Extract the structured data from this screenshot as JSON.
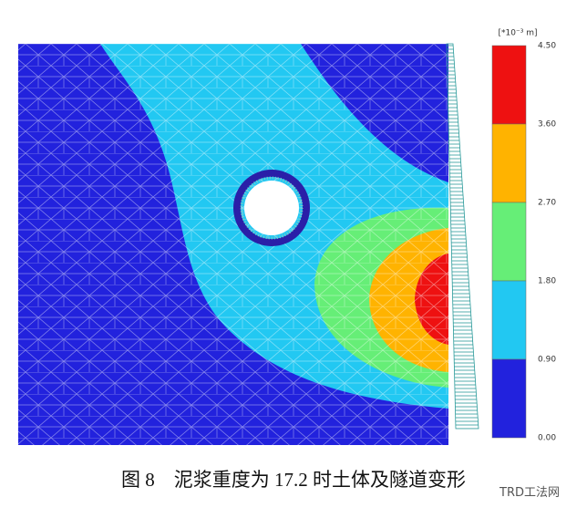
{
  "figure": {
    "unit": "[*10⁻³ m]",
    "scale": {
      "labels": [
        "4.50",
        "3.60",
        "2.70",
        "1.80",
        "0.90",
        "0.00"
      ],
      "colors": [
        "#ee1111",
        "#ffb300",
        "#66ee77",
        "#22c8f2",
        "#2222dd"
      ]
    },
    "caption": "图 8　泥浆重度为 17.2 时土体及隧道变形",
    "watermark": "TRD工法网"
  }
}
